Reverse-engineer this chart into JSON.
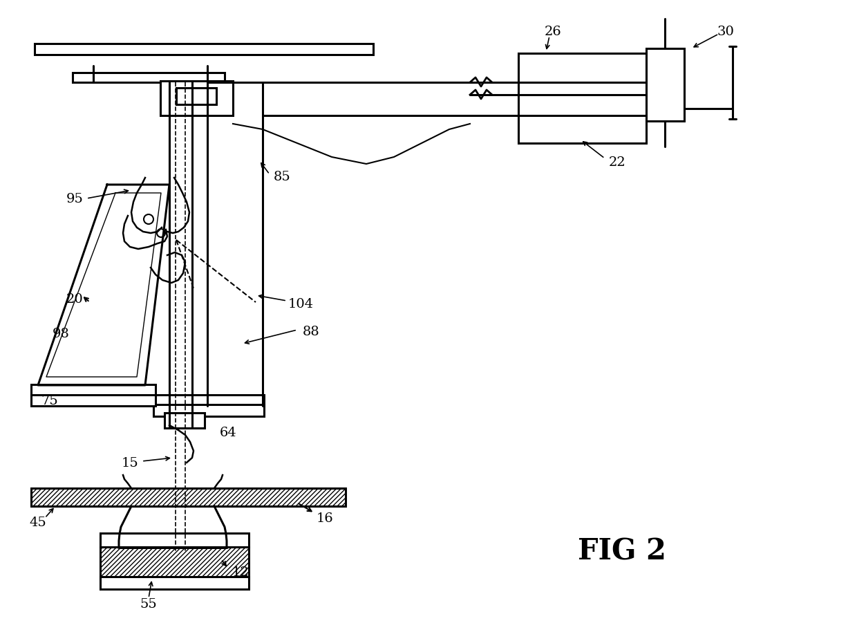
{
  "bg_color": "#ffffff",
  "line_color": "#000000",
  "fig_label": "FIG 2",
  "figsize": [
    12.4,
    9.28
  ],
  "dpi": 100
}
